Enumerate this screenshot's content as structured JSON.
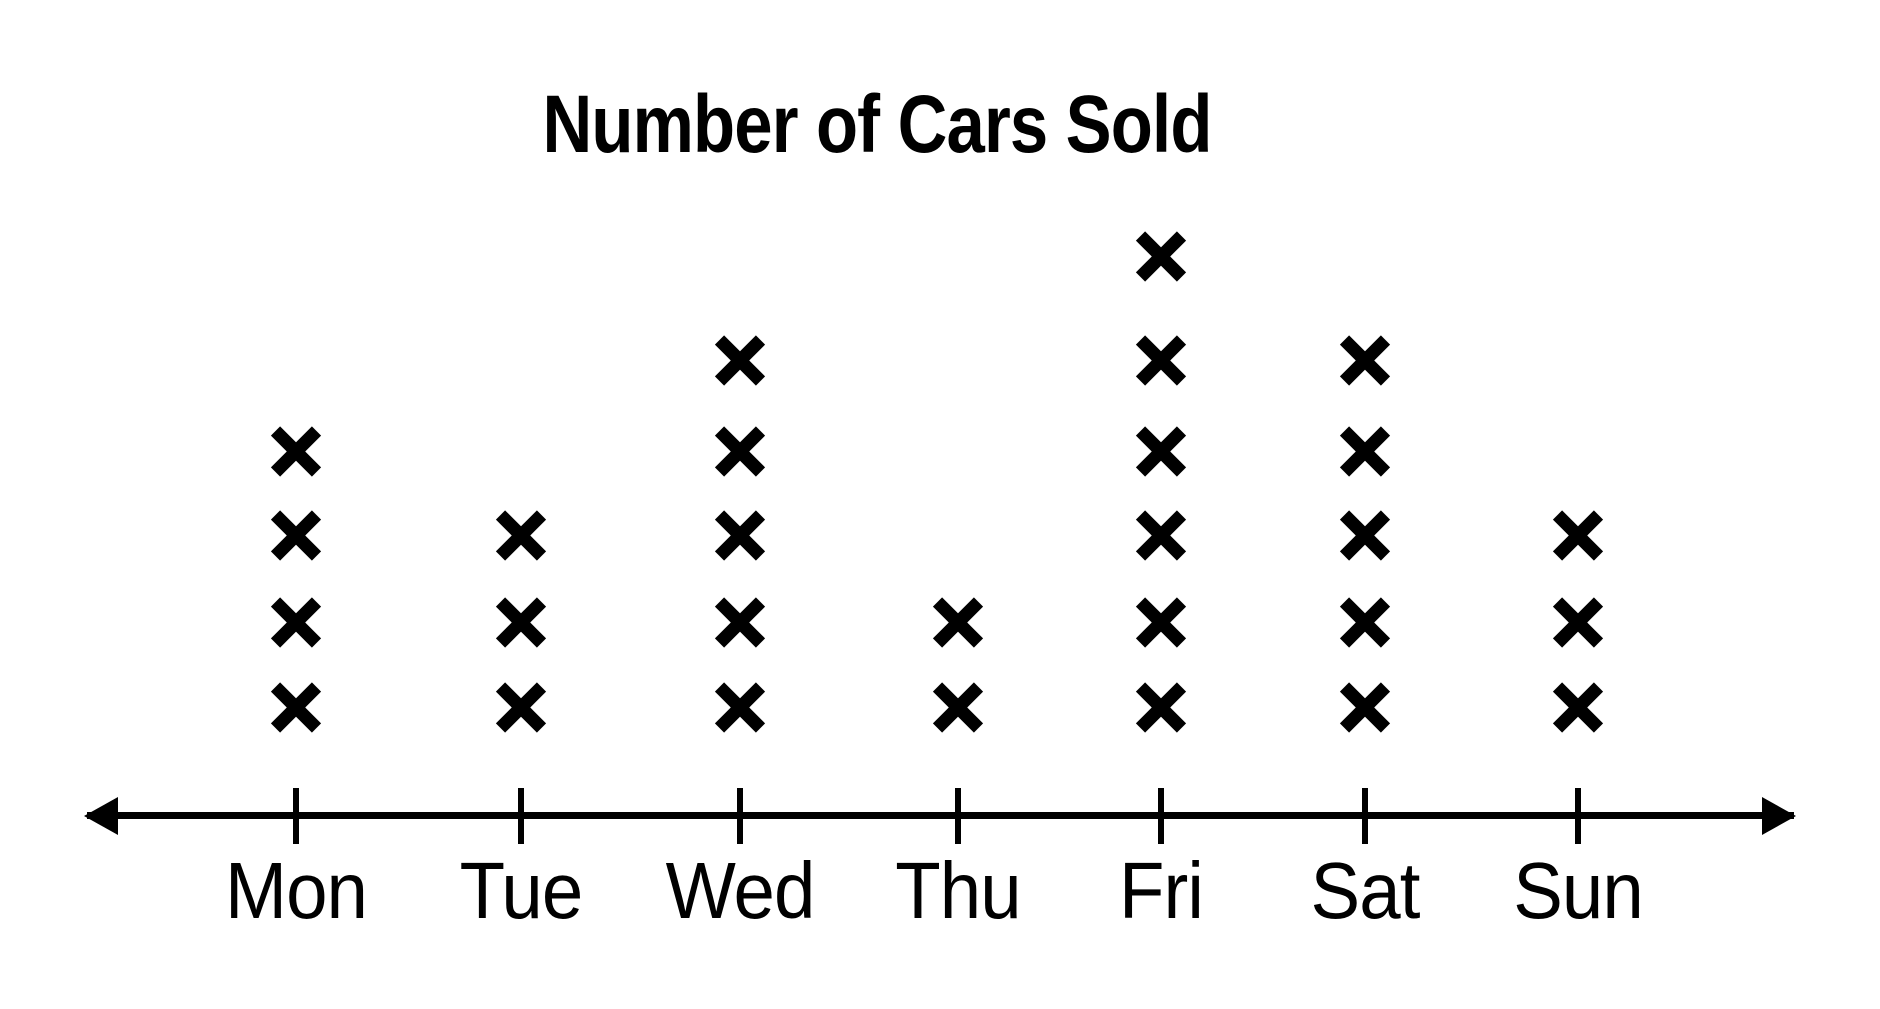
{
  "page": {
    "background_color": "#ffffff",
    "foreground_color": "#000000"
  },
  "chart_data": {
    "type": "dot-plot",
    "title": "Number of Cars Sold",
    "categories": [
      "Mon",
      "Tue",
      "Wed",
      "Thu",
      "Fri",
      "Sat",
      "Sun"
    ],
    "values": [
      4,
      3,
      5,
      2,
      6,
      5,
      3
    ],
    "marker": "x-cross",
    "marker_color": "#000000",
    "axis_style": "horizontal-number-line-with-double-arrows",
    "axis_color": "#000000",
    "xlabel": "",
    "ylabel": "",
    "ylim": [
      0,
      6
    ],
    "grid": false,
    "legend": false
  }
}
